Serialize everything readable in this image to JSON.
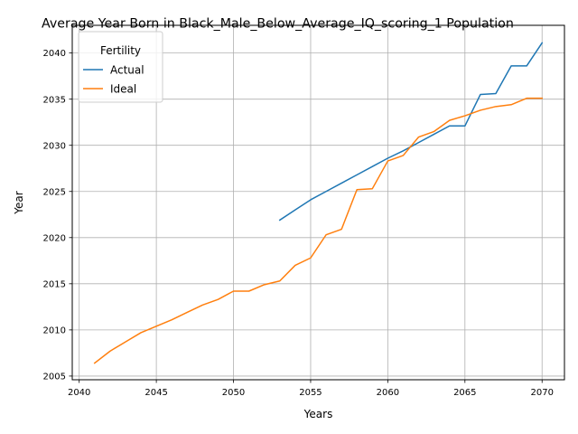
{
  "chart_data": {
    "type": "line",
    "title": "Average Year Born in Black_Male_Below_Average_IQ_scoring_1 Population",
    "xlabel": "Years",
    "ylabel": "Year",
    "xlim": [
      2039.55,
      2071.45
    ],
    "ylim": [
      2004.6,
      2043.0
    ],
    "xticks": [
      2040,
      2045,
      2050,
      2055,
      2060,
      2065,
      2070
    ],
    "yticks": [
      2005,
      2010,
      2015,
      2020,
      2025,
      2030,
      2035,
      2040
    ],
    "grid": true,
    "legend": {
      "title": "Fertility",
      "placement": "top-left"
    },
    "series": [
      {
        "name": "Actual",
        "color": "#1f77b4",
        "x": [
          2053,
          2054,
          2055,
          2056,
          2057,
          2058,
          2059,
          2060,
          2061,
          2062,
          2063,
          2064,
          2065,
          2066,
          2067,
          2068,
          2069,
          2070
        ],
        "values": [
          2021.9,
          2023.0,
          2024.1,
          2025.0,
          2025.9,
          2026.8,
          2027.7,
          2028.6,
          2029.4,
          2030.3,
          2031.2,
          2032.1,
          2032.1,
          2035.5,
          2035.6,
          2038.6,
          2038.6,
          2041.1
        ]
      },
      {
        "name": "Ideal",
        "color": "#ff7f0e",
        "x": [
          2041,
          2042,
          2043,
          2044,
          2045,
          2046,
          2047,
          2048,
          2049,
          2050,
          2051,
          2052,
          2053,
          2054,
          2055,
          2056,
          2057,
          2058,
          2059,
          2060,
          2061,
          2062,
          2063,
          2064,
          2065,
          2066,
          2067,
          2068,
          2069,
          2070
        ],
        "values": [
          2006.4,
          2007.7,
          2008.7,
          2009.7,
          2010.4,
          2011.1,
          2011.9,
          2012.7,
          2013.3,
          2014.2,
          2014.2,
          2014.9,
          2015.3,
          2017.0,
          2017.8,
          2020.3,
          2020.9,
          2025.2,
          2025.3,
          2028.3,
          2028.9,
          2030.9,
          2031.5,
          2032.7,
          2033.2,
          2033.8,
          2034.2,
          2034.4,
          2035.1,
          2035.1
        ]
      }
    ]
  }
}
